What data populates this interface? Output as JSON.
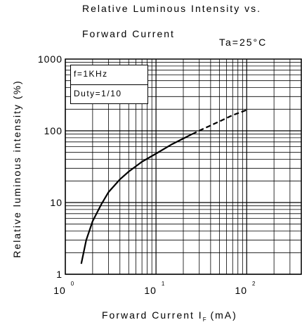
{
  "chart_data": {
    "type": "line",
    "title_line1": "Relative Luminous Intensity vs.",
    "title_line2": "Forward Current",
    "condition": "Ta=25°C",
    "xlabel_main": "Forward Current  I",
    "xlabel_sub": "F",
    "xlabel_unit": " (mA)",
    "ylabel": "Relative luminous intensity (%)",
    "x_scale": "log",
    "y_scale": "log",
    "xlim": [
      1,
      400
    ],
    "ylim": [
      1,
      1000
    ],
    "x_ticks": [
      {
        "value": 1,
        "base": "10",
        "exp": "0"
      },
      {
        "value": 10,
        "base": "10",
        "exp": "1"
      },
      {
        "value": 100,
        "base": "10",
        "exp": "2"
      }
    ],
    "y_ticks": [
      {
        "value": 1,
        "label": "1"
      },
      {
        "value": 10,
        "label": "10"
      },
      {
        "value": 100,
        "label": "100"
      },
      {
        "value": 1000,
        "label": "1000"
      }
    ],
    "grid": true,
    "legend_lines": [
      "f=1KHz",
      "Duty=1/10"
    ],
    "legend_placement": "top-left",
    "series": [
      {
        "style": "solid",
        "x": [
          1.5,
          1.7,
          2,
          2.5,
          3,
          4,
          5,
          7,
          10,
          15,
          20,
          25
        ],
        "y": [
          1.4,
          3,
          5.5,
          9.5,
          14,
          21,
          27,
          37,
          48,
          65,
          78,
          90
        ]
      },
      {
        "style": "dashed",
        "x": [
          25,
          35,
          50,
          70,
          100
        ],
        "y": [
          90,
          110,
          135,
          165,
          195
        ]
      }
    ]
  }
}
